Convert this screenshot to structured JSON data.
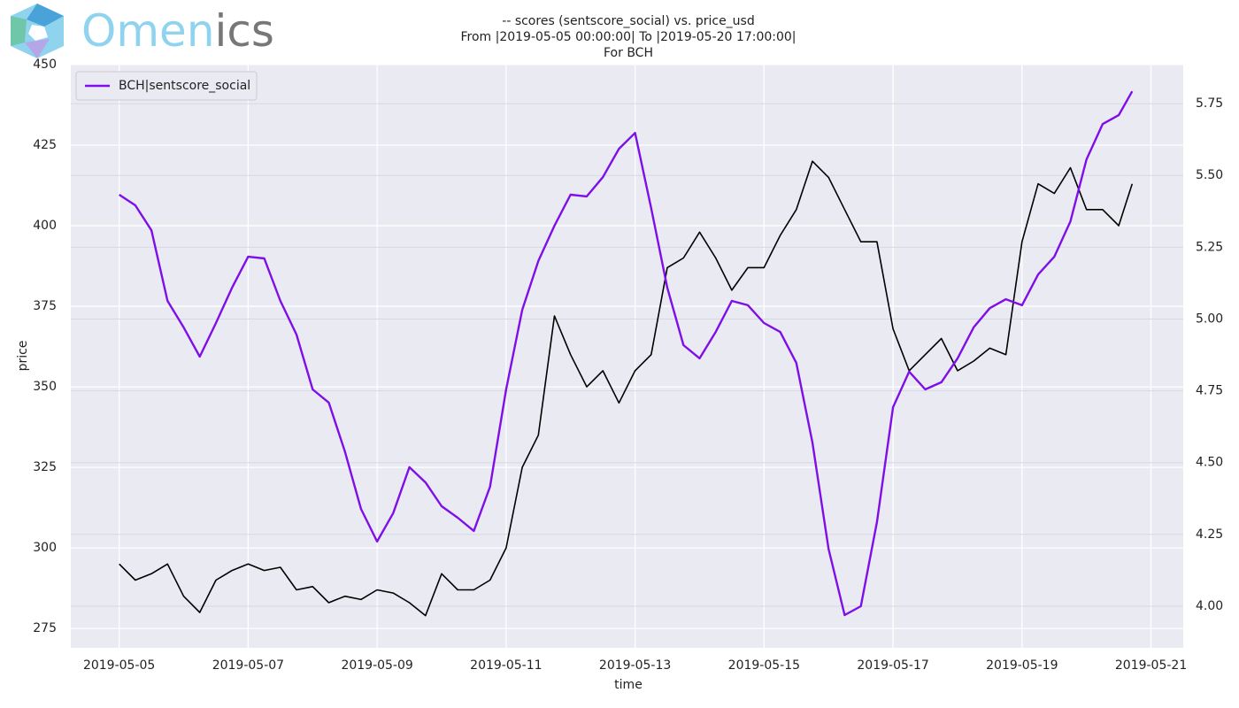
{
  "logo": [
    "Omen",
    "ics"
  ],
  "chart_data": {
    "type": "line",
    "title": "-- scores (sentscore_social) vs. price_usd",
    "subtitle": [
      "From |2019-05-05 00:00:00| To |2019-05-20 17:00:00|",
      "For BCH"
    ],
    "xlabel": "time",
    "ylabel": "price",
    "x": [
      "2019-05-05 00:00",
      "2019-05-05 06:00",
      "2019-05-05 12:00",
      "2019-05-05 18:00",
      "2019-05-06 00:00",
      "2019-05-06 06:00",
      "2019-05-06 12:00",
      "2019-05-06 18:00",
      "2019-05-07 00:00",
      "2019-05-07 06:00",
      "2019-05-07 12:00",
      "2019-05-07 18:00",
      "2019-05-08 00:00",
      "2019-05-08 06:00",
      "2019-05-08 12:00",
      "2019-05-08 18:00",
      "2019-05-09 00:00",
      "2019-05-09 06:00",
      "2019-05-09 12:00",
      "2019-05-09 18:00",
      "2019-05-10 00:00",
      "2019-05-10 06:00",
      "2019-05-10 12:00",
      "2019-05-10 18:00",
      "2019-05-11 00:00",
      "2019-05-11 06:00",
      "2019-05-11 12:00",
      "2019-05-11 18:00",
      "2019-05-12 00:00",
      "2019-05-12 06:00",
      "2019-05-12 12:00",
      "2019-05-12 18:00",
      "2019-05-13 00:00",
      "2019-05-13 06:00",
      "2019-05-13 12:00",
      "2019-05-13 18:00",
      "2019-05-14 00:00",
      "2019-05-14 06:00",
      "2019-05-14 12:00",
      "2019-05-14 18:00",
      "2019-05-15 00:00",
      "2019-05-15 06:00",
      "2019-05-15 12:00",
      "2019-05-15 18:00",
      "2019-05-16 00:00",
      "2019-05-16 06:00",
      "2019-05-16 12:00",
      "2019-05-16 18:00",
      "2019-05-17 00:00",
      "2019-05-17 06:00",
      "2019-05-17 12:00",
      "2019-05-17 18:00",
      "2019-05-18 00:00",
      "2019-05-18 06:00",
      "2019-05-18 12:00",
      "2019-05-18 18:00",
      "2019-05-19 00:00",
      "2019-05-19 06:00",
      "2019-05-19 12:00",
      "2019-05-19 18:00",
      "2019-05-20 00:00",
      "2019-05-20 06:00",
      "2019-05-20 12:00",
      "2019-05-20 17:00"
    ],
    "series": [
      {
        "color": "#000000",
        "values": [
          295,
          290,
          292,
          295,
          285,
          280,
          290,
          293,
          295,
          293,
          294,
          287,
          288,
          283,
          285,
          284,
          287,
          286,
          283,
          279,
          292,
          287,
          287,
          290,
          300,
          325,
          335,
          372,
          360,
          350,
          355,
          345,
          355,
          360,
          387,
          390,
          398,
          390,
          380,
          387,
          387,
          397,
          405,
          420,
          415,
          405,
          395,
          395,
          368,
          355,
          360,
          365,
          355,
          358,
          362,
          360,
          395,
          413,
          410,
          418,
          405,
          405,
          400,
          413
        ]
      },
      {
        "name": "BCH|sentscore_social",
        "color": "#7f0fe8",
        "axis": "y2",
        "values": [
          5.433,
          5.396,
          5.309,
          5.063,
          4.971,
          4.869,
          4.986,
          5.109,
          5.217,
          5.211,
          5.063,
          4.946,
          4.755,
          4.709,
          4.539,
          4.339,
          4.225,
          4.324,
          4.484,
          4.431,
          4.348,
          4.308,
          4.262,
          4.416,
          4.755,
          5.032,
          5.202,
          5.325,
          5.433,
          5.427,
          5.494,
          5.593,
          5.648,
          5.386,
          5.109,
          4.909,
          4.863,
          4.955,
          5.063,
          5.048,
          4.986,
          4.955,
          4.847,
          4.57,
          4.2,
          3.969,
          4.0,
          4.293,
          4.693,
          4.817,
          4.755,
          4.78,
          4.863,
          4.971,
          5.038,
          5.069,
          5.048,
          5.155,
          5.217,
          5.34,
          5.556,
          5.679,
          5.71,
          5.793
        ]
      }
    ],
    "xlim": [
      "2019-05-04 06:00",
      "2019-05-21 12:00"
    ],
    "xticks": [
      "2019-05-05",
      "2019-05-07",
      "2019-05-09",
      "2019-05-11",
      "2019-05-13",
      "2019-05-15",
      "2019-05-17",
      "2019-05-19",
      "2019-05-21"
    ],
    "ylim": [
      269,
      450
    ],
    "yticks": [
      275,
      300,
      325,
      350,
      375,
      400,
      425,
      450
    ],
    "y2lim": [
      3.855,
      5.886
    ],
    "y2ticks": [
      {
        "value": 4,
        "label": "4.00"
      },
      {
        "value": 4.25,
        "label": "4.25"
      },
      {
        "value": 4.5,
        "label": "4.50"
      },
      {
        "value": 4.75,
        "label": "4.75"
      },
      {
        "value": 5,
        "label": "5.00"
      },
      {
        "value": 5.25,
        "label": "5.25"
      },
      {
        "value": 5.5,
        "label": "5.50"
      },
      {
        "value": 5.75,
        "label": "5.75"
      }
    ],
    "grid": true,
    "legend": "upper left"
  }
}
